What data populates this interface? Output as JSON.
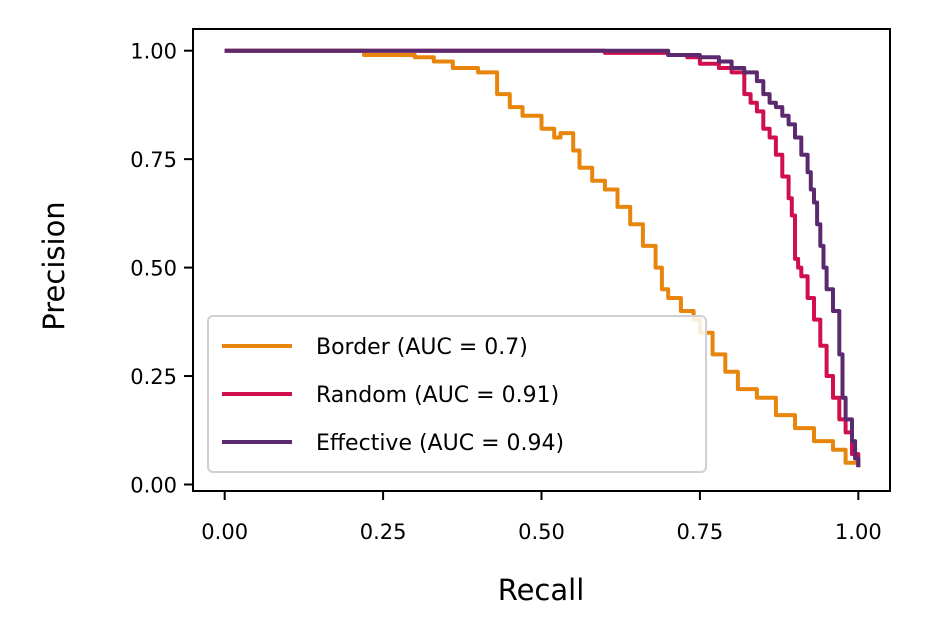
{
  "chart_data": {
    "type": "line",
    "xlabel": "Recall",
    "ylabel": "Precision",
    "xlim": [
      -0.05,
      1.05
    ],
    "ylim": [
      -0.015,
      1.05
    ],
    "xticks": [
      0.0,
      0.25,
      0.5,
      0.75,
      1.0
    ],
    "xtick_labels": [
      "0.00",
      "0.25",
      "0.50",
      "0.75",
      "1.00"
    ],
    "yticks": [
      0.0,
      0.25,
      0.5,
      0.75,
      1.0
    ],
    "ytick_labels": [
      "0.00",
      "0.25",
      "0.50",
      "0.75",
      "1.00"
    ],
    "grid": false,
    "legend_position": "lower-left",
    "series": [
      {
        "name": "Border (AUC = 0.7)",
        "color": "#e8850c",
        "x": [
          0.0,
          0.2,
          0.22,
          0.25,
          0.3,
          0.33,
          0.36,
          0.4,
          0.43,
          0.45,
          0.47,
          0.5,
          0.52,
          0.53,
          0.55,
          0.56,
          0.58,
          0.6,
          0.62,
          0.64,
          0.66,
          0.68,
          0.69,
          0.7,
          0.72,
          0.74,
          0.75,
          0.77,
          0.79,
          0.81,
          0.84,
          0.87,
          0.9,
          0.93,
          0.96,
          0.98,
          1.0
        ],
        "y": [
          1.0,
          1.0,
          0.99,
          0.99,
          0.985,
          0.975,
          0.96,
          0.95,
          0.9,
          0.87,
          0.85,
          0.82,
          0.8,
          0.81,
          0.77,
          0.73,
          0.7,
          0.68,
          0.64,
          0.6,
          0.55,
          0.5,
          0.45,
          0.43,
          0.4,
          0.38,
          0.35,
          0.3,
          0.26,
          0.22,
          0.2,
          0.16,
          0.13,
          0.1,
          0.08,
          0.05,
          0.04
        ]
      },
      {
        "name": "Random (AUC = 0.91)",
        "color": "#d0104c",
        "x": [
          0.0,
          0.5,
          0.6,
          0.7,
          0.73,
          0.75,
          0.78,
          0.8,
          0.82,
          0.83,
          0.84,
          0.85,
          0.86,
          0.87,
          0.88,
          0.89,
          0.895,
          0.9,
          0.905,
          0.91,
          0.92,
          0.93,
          0.94,
          0.95,
          0.96,
          0.97,
          0.98,
          0.99,
          1.0
        ],
        "y": [
          1.0,
          1.0,
          0.995,
          0.99,
          0.985,
          0.97,
          0.96,
          0.95,
          0.9,
          0.88,
          0.86,
          0.82,
          0.8,
          0.76,
          0.71,
          0.66,
          0.62,
          0.52,
          0.5,
          0.48,
          0.43,
          0.38,
          0.32,
          0.25,
          0.2,
          0.15,
          0.12,
          0.07,
          0.04
        ]
      },
      {
        "name": "Effective (AUC = 0.94)",
        "color": "#5b2a6e",
        "x": [
          0.0,
          0.6,
          0.7,
          0.75,
          0.78,
          0.8,
          0.82,
          0.84,
          0.85,
          0.86,
          0.87,
          0.88,
          0.89,
          0.9,
          0.91,
          0.92,
          0.925,
          0.93,
          0.935,
          0.94,
          0.945,
          0.95,
          0.96,
          0.97,
          0.975,
          0.98,
          0.99,
          0.995,
          1.0
        ],
        "y": [
          1.0,
          1.0,
          0.99,
          0.985,
          0.975,
          0.96,
          0.95,
          0.93,
          0.9,
          0.88,
          0.87,
          0.85,
          0.83,
          0.8,
          0.76,
          0.72,
          0.68,
          0.65,
          0.6,
          0.55,
          0.5,
          0.45,
          0.4,
          0.3,
          0.2,
          0.15,
          0.1,
          0.06,
          0.04
        ]
      }
    ]
  }
}
